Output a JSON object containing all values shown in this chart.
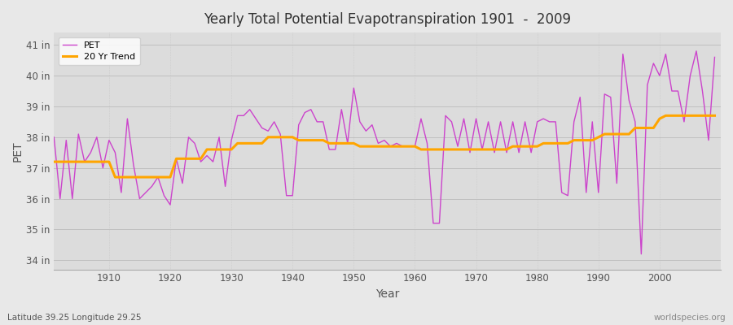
{
  "title": "Yearly Total Potential Evapotranspiration 1901  -  2009",
  "xlabel": "Year",
  "ylabel": "PET",
  "subtitle": "Latitude 39.25 Longitude 29.25",
  "watermark": "worldspecies.org",
  "ylim": [
    33.7,
    41.4
  ],
  "xlim": [
    1901,
    2010
  ],
  "yticks": [
    34,
    35,
    36,
    37,
    38,
    39,
    40,
    41
  ],
  "ytick_labels": [
    "34 in",
    "35 in",
    "36 in",
    "37 in",
    "38 in",
    "39 in",
    "40 in",
    "41 in"
  ],
  "xticks": [
    1910,
    1920,
    1930,
    1940,
    1950,
    1960,
    1970,
    1980,
    1990,
    2000
  ],
  "pet_color": "#CC44CC",
  "trend_color": "#FFA500",
  "bg_color": "#E8E8E8",
  "plot_bg_color": "#DCDCDC",
  "grid_color": "#C0C0C0",
  "pet_years": [
    1901,
    1902,
    1903,
    1904,
    1905,
    1906,
    1907,
    1908,
    1909,
    1910,
    1911,
    1912,
    1913,
    1914,
    1915,
    1916,
    1917,
    1918,
    1919,
    1920,
    1921,
    1922,
    1923,
    1924,
    1925,
    1926,
    1927,
    1928,
    1929,
    1930,
    1931,
    1932,
    1933,
    1934,
    1935,
    1936,
    1937,
    1938,
    1939,
    1940,
    1941,
    1942,
    1943,
    1944,
    1945,
    1946,
    1947,
    1948,
    1949,
    1950,
    1951,
    1952,
    1953,
    1954,
    1955,
    1956,
    1957,
    1958,
    1959,
    1960,
    1961,
    1962,
    1963,
    1964,
    1965,
    1966,
    1967,
    1968,
    1969,
    1970,
    1971,
    1972,
    1973,
    1974,
    1975,
    1976,
    1977,
    1978,
    1979,
    1980,
    1981,
    1982,
    1983,
    1984,
    1985,
    1986,
    1987,
    1988,
    1989,
    1990,
    1991,
    1992,
    1993,
    1994,
    1995,
    1996,
    1997,
    1998,
    1999,
    2000,
    2001,
    2002,
    2003,
    2004,
    2005,
    2006,
    2007,
    2008,
    2009
  ],
  "pet_values": [
    38.0,
    36.0,
    37.9,
    36.0,
    38.1,
    37.2,
    37.5,
    38.0,
    37.0,
    37.9,
    37.5,
    36.2,
    38.6,
    37.1,
    36.0,
    36.2,
    36.4,
    36.7,
    36.1,
    35.8,
    37.3,
    36.5,
    38.0,
    37.8,
    37.2,
    37.4,
    37.2,
    38.0,
    36.4,
    37.9,
    38.7,
    38.7,
    38.9,
    38.6,
    38.3,
    38.2,
    38.5,
    38.1,
    36.1,
    36.1,
    38.4,
    38.8,
    38.9,
    38.5,
    38.5,
    37.6,
    37.6,
    38.9,
    37.8,
    39.6,
    38.5,
    38.2,
    38.4,
    37.8,
    37.9,
    37.7,
    37.8,
    37.7,
    37.7,
    37.7,
    38.6,
    37.8,
    35.2,
    35.2,
    38.7,
    38.5,
    37.7,
    38.6,
    37.5,
    38.6,
    37.6,
    38.5,
    37.5,
    38.5,
    37.5,
    38.5,
    37.5,
    38.5,
    37.5,
    38.5,
    38.6,
    38.5,
    38.5,
    36.2,
    36.1,
    38.5,
    39.3,
    36.2,
    38.5,
    36.2,
    39.4,
    39.3,
    36.5,
    40.7,
    39.2,
    38.5,
    34.2,
    39.7,
    40.4,
    40.0,
    40.7,
    39.5,
    39.5,
    38.5,
    40.0,
    40.8,
    39.5,
    37.9,
    40.6
  ],
  "trend_years": [
    1901,
    1902,
    1903,
    1904,
    1905,
    1906,
    1907,
    1908,
    1909,
    1910,
    1911,
    1912,
    1913,
    1914,
    1915,
    1916,
    1917,
    1918,
    1919,
    1920,
    1921,
    1922,
    1923,
    1924,
    1925,
    1926,
    1927,
    1928,
    1929,
    1930,
    1931,
    1932,
    1933,
    1934,
    1935,
    1936,
    1937,
    1938,
    1939,
    1940,
    1941,
    1942,
    1943,
    1944,
    1945,
    1946,
    1947,
    1948,
    1949,
    1950,
    1951,
    1952,
    1953,
    1954,
    1955,
    1956,
    1957,
    1958,
    1959,
    1960,
    1961,
    1962,
    1963,
    1964,
    1965,
    1966,
    1967,
    1968,
    1969,
    1970,
    1971,
    1972,
    1973,
    1974,
    1975,
    1976,
    1977,
    1978,
    1979,
    1980,
    1981,
    1982,
    1983,
    1984,
    1985,
    1986,
    1987,
    1988,
    1989,
    1990,
    1991,
    1992,
    1993,
    1994,
    1995,
    1996,
    1997,
    1998,
    1999,
    2000,
    2001,
    2002,
    2003,
    2004,
    2005,
    2006,
    2007,
    2008,
    2009
  ],
  "trend_values": [
    37.2,
    37.2,
    37.2,
    37.2,
    37.2,
    37.2,
    37.2,
    37.2,
    37.2,
    37.2,
    36.7,
    36.7,
    36.7,
    36.7,
    36.7,
    36.7,
    36.7,
    36.7,
    36.7,
    36.7,
    37.3,
    37.3,
    37.3,
    37.3,
    37.3,
    37.6,
    37.6,
    37.6,
    37.6,
    37.6,
    37.8,
    37.8,
    37.8,
    37.8,
    37.8,
    38.0,
    38.0,
    38.0,
    38.0,
    38.0,
    37.9,
    37.9,
    37.9,
    37.9,
    37.9,
    37.8,
    37.8,
    37.8,
    37.8,
    37.8,
    37.7,
    37.7,
    37.7,
    37.7,
    37.7,
    37.7,
    37.7,
    37.7,
    37.7,
    37.7,
    37.6,
    37.6,
    37.6,
    37.6,
    37.6,
    37.6,
    37.6,
    37.6,
    37.6,
    37.6,
    37.6,
    37.6,
    37.6,
    37.6,
    37.6,
    37.7,
    37.7,
    37.7,
    37.7,
    37.7,
    37.8,
    37.8,
    37.8,
    37.8,
    37.8,
    37.9,
    37.9,
    37.9,
    37.9,
    38.0,
    38.1,
    38.1,
    38.1,
    38.1,
    38.1,
    38.3,
    38.3,
    38.3,
    38.3,
    38.6,
    38.7,
    38.7,
    38.7,
    38.7,
    38.7,
    38.7,
    38.7,
    38.7,
    38.7
  ]
}
